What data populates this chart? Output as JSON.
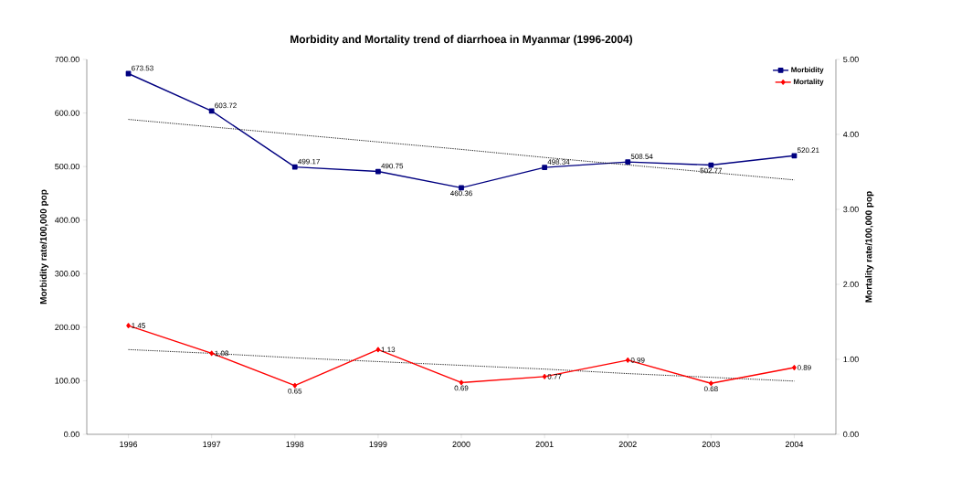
{
  "chart_data": {
    "type": "line",
    "title": "Morbidity and Mortality trend of diarrhoea in Myanmar (1996-2004)",
    "ylabel": "Morbidity rate/100,000 pop",
    "y2label": "Mortality rate/100,000 pop",
    "categories": [
      "1996",
      "1997",
      "1998",
      "1999",
      "2000",
      "2001",
      "2002",
      "2003",
      "2004"
    ],
    "series": [
      {
        "name": "Morbidity",
        "color": "#000080",
        "marker": "square",
        "line_style": "solid",
        "values": [
          673.53,
          603.72,
          499.17,
          490.75,
          460.36,
          498.34,
          508.54,
          502.77,
          520.21
        ],
        "value_labels": [
          "673.53",
          "603.72",
          "499.17",
          "490.75",
          "460.36",
          "498.34",
          "508.54",
          "502.77",
          "520.21"
        ]
      },
      {
        "name": "Mortality",
        "color": "#ff0000",
        "marker": "diamond",
        "line_style": "solid",
        "axis": "y2",
        "values": [
          1.45,
          1.08,
          0.65,
          1.13,
          0.69,
          0.77,
          0.99,
          0.68,
          0.89
        ],
        "value_labels": [
          "1.45",
          "1.08",
          "0.65",
          "1.13",
          "0.69",
          "0.77",
          "0.99",
          "0.68",
          "0.89"
        ]
      },
      {
        "color": "#000000",
        "marker": "none",
        "line_style": "dotted",
        "values": [
          588,
          574,
          560,
          546,
          532,
          517,
          503,
          489,
          475
        ]
      },
      {
        "color": "#000000",
        "marker": "none",
        "line_style": "dotted",
        "axis": "y2",
        "values": [
          1.13,
          1.08,
          1.02,
          0.97,
          0.92,
          0.87,
          0.81,
          0.76,
          0.71
        ]
      }
    ],
    "ylim": [
      0,
      700
    ],
    "yticks": [
      {
        "value": 0,
        "label": "0.00"
      },
      {
        "value": 100,
        "label": "100.00"
      },
      {
        "value": 200,
        "label": "200.00"
      },
      {
        "value": 300,
        "label": "300.00"
      },
      {
        "value": 400,
        "label": "400.00"
      },
      {
        "value": 500,
        "label": "500.00"
      },
      {
        "value": 600,
        "label": "600.00"
      },
      {
        "value": 700,
        "label": "700.00"
      }
    ],
    "y2lim": [
      0,
      5
    ],
    "y2ticks": [
      {
        "value": 0,
        "label": "0.00"
      },
      {
        "value": 1,
        "label": "1.00"
      },
      {
        "value": 2,
        "label": "2.00"
      },
      {
        "value": 3,
        "label": "3.00"
      },
      {
        "value": 4,
        "label": "4.00"
      },
      {
        "value": 5,
        "label": "5.00"
      }
    ],
    "legend": "top right"
  }
}
